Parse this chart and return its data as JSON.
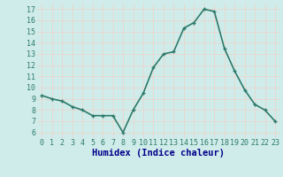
{
  "x": [
    0,
    1,
    2,
    3,
    4,
    5,
    6,
    7,
    8,
    9,
    10,
    11,
    12,
    13,
    14,
    15,
    16,
    17,
    18,
    19,
    20,
    21,
    22,
    23
  ],
  "y": [
    9.3,
    9.0,
    8.8,
    8.3,
    8.0,
    7.5,
    7.5,
    7.5,
    6.0,
    8.0,
    9.5,
    11.8,
    13.0,
    13.2,
    15.3,
    15.8,
    17.0,
    16.8,
    13.5,
    11.5,
    9.8,
    8.5,
    8.0,
    7.0
  ],
  "xlabel": "Humidex (Indice chaleur)",
  "ylim": [
    5.5,
    17.5
  ],
  "xlim": [
    -0.5,
    23.5
  ],
  "yticks": [
    6,
    7,
    8,
    9,
    10,
    11,
    12,
    13,
    14,
    15,
    16,
    17
  ],
  "xticks": [
    0,
    1,
    2,
    3,
    4,
    5,
    6,
    7,
    8,
    9,
    10,
    11,
    12,
    13,
    14,
    15,
    16,
    17,
    18,
    19,
    20,
    21,
    22,
    23
  ],
  "xtick_labels": [
    "0",
    "1",
    "2",
    "3",
    "4",
    "5",
    "6",
    "7",
    "8",
    "9",
    "10",
    "11",
    "12",
    "13",
    "14",
    "15",
    "16",
    "17",
    "18",
    "19",
    "20",
    "21",
    "22",
    "23"
  ],
  "line_color": "#2d7a6a",
  "marker_color": "#2d7a6a",
  "bg_color": "#d0ecea",
  "grid_color": "#e8d8d0",
  "label_color": "#00008b",
  "tick_color": "#2d7a6a",
  "font_size_xlabel": 7.5,
  "font_size_ticks": 6.0,
  "linewidth": 1.2,
  "markersize": 3.5,
  "markeredgewidth": 1.0
}
